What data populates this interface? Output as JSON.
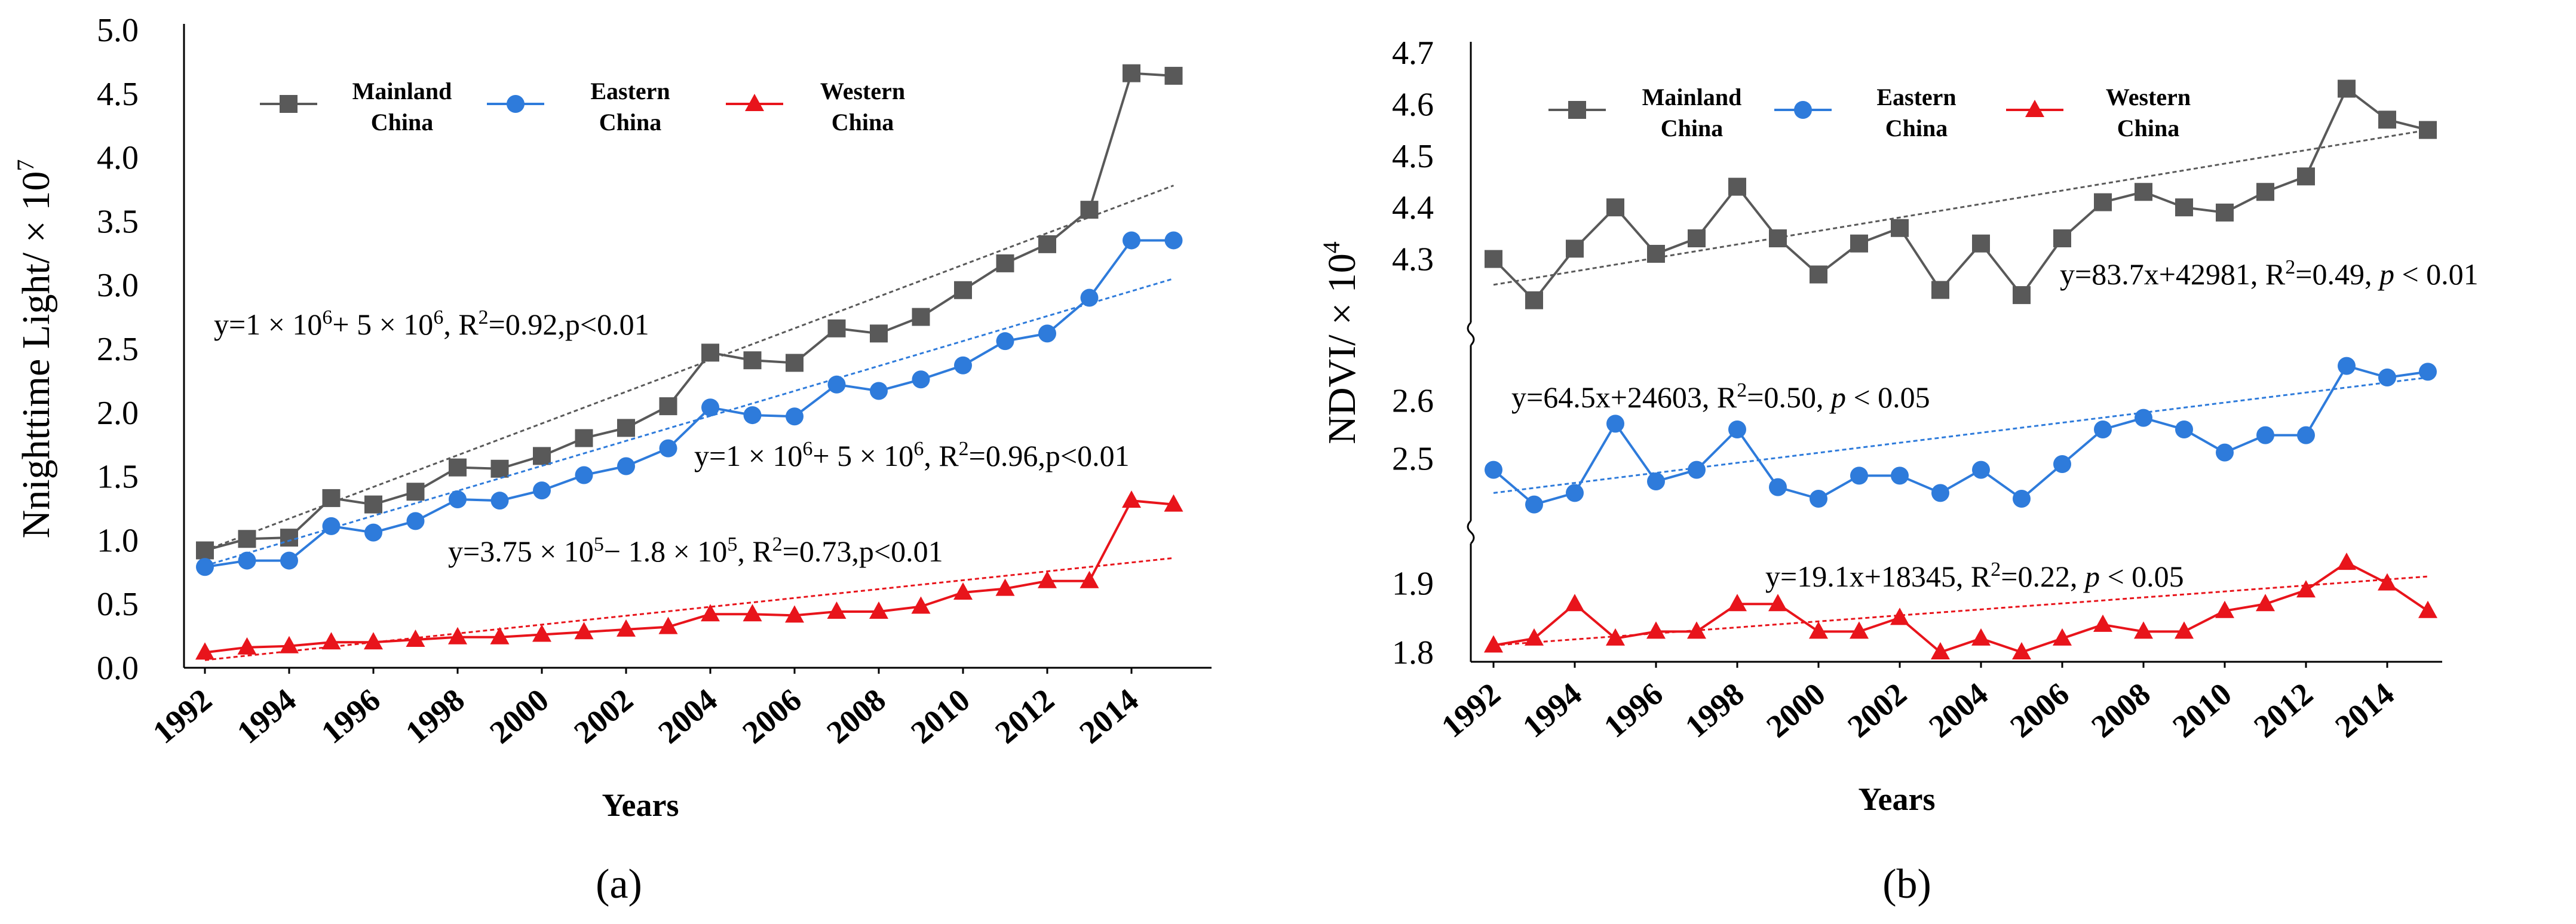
{
  "chart_data": [
    {
      "type": "line",
      "panel_label": "(a)",
      "xlabel": "Years",
      "ylabel": "Nnighttime Light/ × 10",
      "ylabel_exp": "7",
      "ylim": [
        0,
        5.0
      ],
      "yticks": [
        "0.0",
        "0.5",
        "1.0",
        "1.5",
        "2.0",
        "2.5",
        "3.0",
        "3.5",
        "4.0",
        "4.5",
        "5.0"
      ],
      "x": [
        1992,
        1993,
        1994,
        1995,
        1996,
        1997,
        1998,
        1999,
        2000,
        2001,
        2002,
        2003,
        2004,
        2005,
        2006,
        2007,
        2008,
        2009,
        2010,
        2011,
        2012,
        2013,
        2014,
        2015
      ],
      "xticks": [
        "1992",
        "1994",
        "1996",
        "1998",
        "2000",
        "2002",
        "2004",
        "2006",
        "2008",
        "2010",
        "2012",
        "2014"
      ],
      "legend": {
        "position": "top",
        "entries": [
          {
            "line1": "Mainland",
            "line2": "China"
          },
          {
            "line1": "Eastern",
            "line2": "China"
          },
          {
            "line1": "Western",
            "line2": "China"
          }
        ]
      },
      "series": [
        {
          "name": "Mainland China",
          "color": "#595959",
          "marker": "square",
          "values": [
            0.92,
            1.01,
            1.02,
            1.33,
            1.28,
            1.38,
            1.57,
            1.56,
            1.66,
            1.8,
            1.88,
            2.05,
            2.47,
            2.41,
            2.39,
            2.66,
            2.62,
            2.75,
            2.96,
            3.17,
            3.32,
            3.59,
            4.66,
            4.64
          ],
          "trend": [
            0.92,
            3.78
          ]
        },
        {
          "name": "Eastern China",
          "color": "#2E7BDB",
          "marker": "circle",
          "values": [
            0.79,
            0.84,
            0.84,
            1.11,
            1.06,
            1.15,
            1.32,
            1.31,
            1.39,
            1.51,
            1.58,
            1.72,
            2.04,
            1.98,
            1.97,
            2.22,
            2.17,
            2.26,
            2.37,
            2.56,
            2.62,
            2.9,
            3.35,
            3.35
          ],
          "trend": [
            0.8,
            3.05
          ]
        },
        {
          "name": "Western China",
          "color": "#E8141B",
          "marker": "triangle",
          "values": [
            0.12,
            0.16,
            0.17,
            0.2,
            0.2,
            0.22,
            0.24,
            0.24,
            0.26,
            0.28,
            0.3,
            0.32,
            0.42,
            0.42,
            0.41,
            0.44,
            0.44,
            0.48,
            0.59,
            0.62,
            0.68,
            0.68,
            1.31,
            1.28
          ],
          "trend": [
            0.06,
            0.86
          ]
        }
      ],
      "annotations": [
        {
          "id": "a-eq1",
          "pre": "y=1 × 10",
          "s1": "6",
          "mid": "+ 5 × 10",
          "s2": "6",
          "post": ", R",
          "s3": "2",
          "end": "=0.92,p<0.01"
        },
        {
          "id": "a-eq2",
          "pre": "y=1 × 10",
          "s1": "6",
          "mid": "+ 5 × 10",
          "s2": "6",
          "post": ", R",
          "s3": "2",
          "end": "=0.96,p<0.01"
        },
        {
          "id": "a-eq3",
          "pre": "y=3.75 × 10",
          "s1": "5",
          "mid": "− 1.8 × 10",
          "s2": "5",
          "post": ", R",
          "s3": "2",
          "end": "=0.73,p<0.01"
        }
      ]
    },
    {
      "type": "line",
      "panel_label": "(b)",
      "xlabel": "Years",
      "ylabel": "NDVI/ × 10",
      "ylabel_exp": "4",
      "broken_axis": true,
      "x": [
        1992,
        1993,
        1994,
        1995,
        1996,
        1997,
        1998,
        1999,
        2000,
        2001,
        2002,
        2003,
        2004,
        2005,
        2006,
        2007,
        2008,
        2009,
        2010,
        2011,
        2012,
        2013,
        2014,
        2015
      ],
      "xticks": [
        "1992",
        "1994",
        "1996",
        "1998",
        "2000",
        "2002",
        "2004",
        "2006",
        "2008",
        "2010",
        "2012",
        "2014"
      ],
      "legend": {
        "position": "top",
        "entries": [
          {
            "line1": "Mainland",
            "line2": "China"
          },
          {
            "line1": "Eastern",
            "line2": "China"
          },
          {
            "line1": "Western",
            "line2": "China"
          }
        ]
      },
      "series": [
        {
          "name": "Mainland China",
          "color": "#595959",
          "marker": "square",
          "axis_segment": {
            "range": [
              4.2,
              4.7
            ],
            "ticks": [
              "4.3",
              "4.4",
              "4.5",
              "4.6",
              "4.7"
            ]
          },
          "values": [
            4.3,
            4.22,
            4.32,
            4.4,
            4.31,
            4.34,
            4.44,
            4.34,
            4.27,
            4.33,
            4.36,
            4.24,
            4.33,
            4.23,
            4.34,
            4.41,
            4.43,
            4.4,
            4.39,
            4.43,
            4.46,
            4.63,
            4.57,
            4.55
          ],
          "trend": [
            4.25,
            4.55
          ]
        },
        {
          "name": "Eastern China",
          "color": "#2E7BDB",
          "marker": "circle",
          "axis_segment": {
            "range": [
              2.4,
              2.7
            ],
            "ticks": [
              "2.5",
              "2.6"
            ]
          },
          "values": [
            2.48,
            2.42,
            2.44,
            2.56,
            2.46,
            2.48,
            2.55,
            2.45,
            2.43,
            2.47,
            2.47,
            2.44,
            2.48,
            2.43,
            2.49,
            2.55,
            2.57,
            2.55,
            2.51,
            2.54,
            2.54,
            2.66,
            2.64,
            2.65
          ],
          "trend": [
            2.44,
            2.64
          ]
        },
        {
          "name": "Western China",
          "color": "#E8141B",
          "marker": "triangle",
          "axis_segment": {
            "range": [
              1.8,
              1.95
            ],
            "ticks": [
              "1.8",
              "1.9"
            ]
          },
          "values": [
            1.81,
            1.82,
            1.87,
            1.82,
            1.83,
            1.83,
            1.87,
            1.87,
            1.83,
            1.83,
            1.85,
            1.8,
            1.82,
            1.8,
            1.82,
            1.84,
            1.83,
            1.83,
            1.86,
            1.87,
            1.89,
            1.93,
            1.9,
            1.86
          ],
          "trend": [
            1.81,
            1.91
          ]
        }
      ],
      "annotations": [
        {
          "id": "b-eq1",
          "pre": "y=83.7x+42981,  R",
          "s1": "2",
          "mid": "=0.49, ",
          "italic": "p",
          "end": " < 0.01"
        },
        {
          "id": "b-eq2",
          "pre": "y=64.5x+24603,  R",
          "s1": "2",
          "mid": "=0.50, ",
          "italic": "p",
          "end": " < 0.05"
        },
        {
          "id": "b-eq3",
          "pre": "y=19.1x+18345,  R",
          "s1": "2",
          "mid": "=0.22, ",
          "italic": "p",
          "end": " < 0.05"
        }
      ]
    }
  ]
}
